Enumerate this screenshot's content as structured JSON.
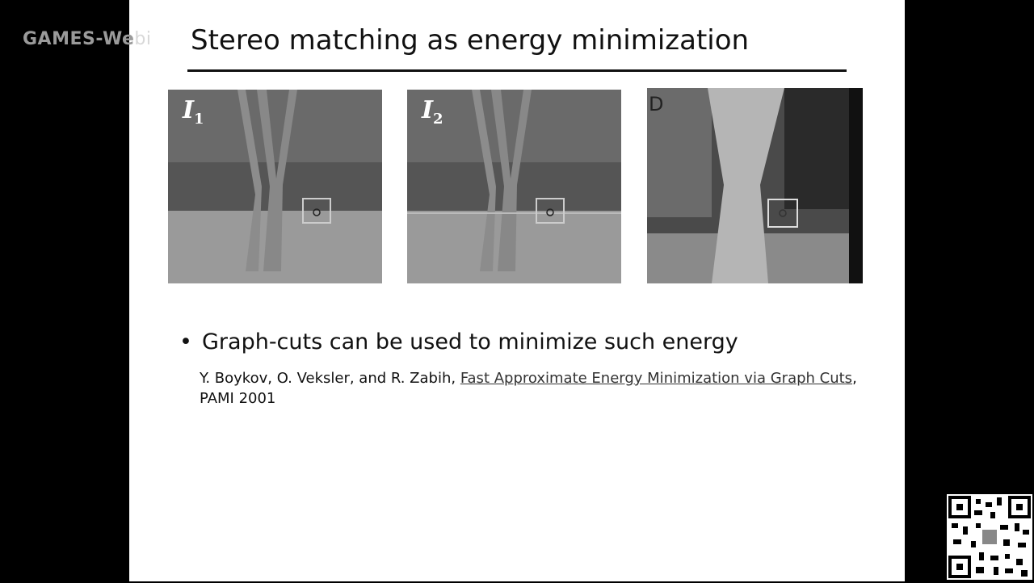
{
  "watermark": {
    "text": "GAMES-We",
    "ghost": "bi"
  },
  "slide": {
    "title": "Stereo matching as energy minimization",
    "images": [
      {
        "label": "I",
        "sub": "1"
      },
      {
        "label": "I",
        "sub": "2"
      },
      {
        "label": "D"
      }
    ],
    "bullet": "Graph-cuts can be used to minimize such energy",
    "reference": {
      "authors": "Y. Boykov, O. Veksler, and R. Zabih, ",
      "link": "Fast Approximate Energy Minimization via Graph Cuts",
      "tail": ",",
      "venue": "PAMI 2001"
    }
  },
  "colors": {
    "background": "#000000",
    "slide": "#ffffff",
    "photo": "#7f7f7f"
  }
}
